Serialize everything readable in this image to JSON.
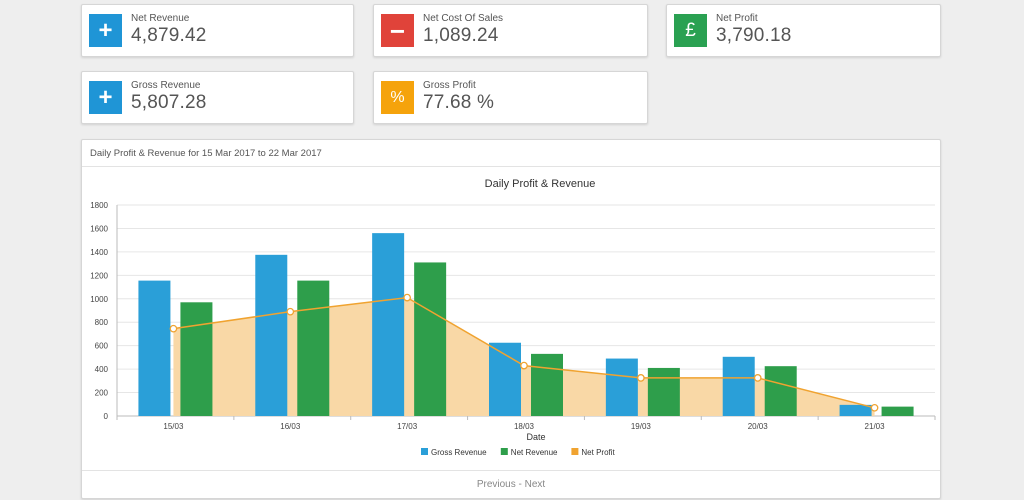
{
  "stats": [
    {
      "label": "Net Revenue",
      "value": "4,879.42",
      "icon": "plus-icon",
      "glyph": "+",
      "color": "#1f95d6"
    },
    {
      "label": "Net Cost Of Sales",
      "value": "1,089.24",
      "icon": "minus-icon",
      "glyph": "−",
      "color": "#e0433a"
    },
    {
      "label": "Net Profit",
      "value": "3,790.18",
      "icon": "pound-icon",
      "glyph": "£",
      "color": "#2aa152"
    },
    {
      "label": "Gross Revenue",
      "value": "5,807.28",
      "icon": "plus-icon",
      "glyph": "+",
      "color": "#1f95d6"
    },
    {
      "label": "Gross Profit",
      "value": "77.68 %",
      "icon": "percent-icon",
      "glyph": "%",
      "color": "#f5a30c"
    }
  ],
  "panel": {
    "header": "Daily Profit & Revenue for 15 Mar 2017 to 22 Mar 2017",
    "footer_prev": "Previous",
    "footer_sep": " - ",
    "footer_next": "Next"
  },
  "chart_data": {
    "type": "bar",
    "title": "Daily Profit & Revenue",
    "xlabel": "Date",
    "ylabel": "",
    "ylim": [
      0,
      1800
    ],
    "yticks": [
      0,
      200,
      400,
      600,
      800,
      1000,
      1200,
      1400,
      1600,
      1800
    ],
    "categories": [
      "15/03",
      "16/03",
      "17/03",
      "18/03",
      "19/03",
      "20/03",
      "21/03"
    ],
    "series": [
      {
        "name": "Gross Revenue",
        "type": "bar",
        "color": "#2a9fd8",
        "values": [
          1155,
          1375,
          1560,
          625,
          490,
          505,
          95
        ]
      },
      {
        "name": "Net Revenue",
        "type": "bar",
        "color": "#2e9e4b",
        "values": [
          970,
          1155,
          1310,
          530,
          410,
          425,
          80
        ]
      },
      {
        "name": "Net Profit",
        "type": "area-line",
        "color": "#f0a330",
        "fill": "#f9d8a6",
        "values": [
          745,
          890,
          1010,
          430,
          325,
          325,
          70
        ]
      }
    ],
    "legend": "bottom",
    "grid": true
  }
}
